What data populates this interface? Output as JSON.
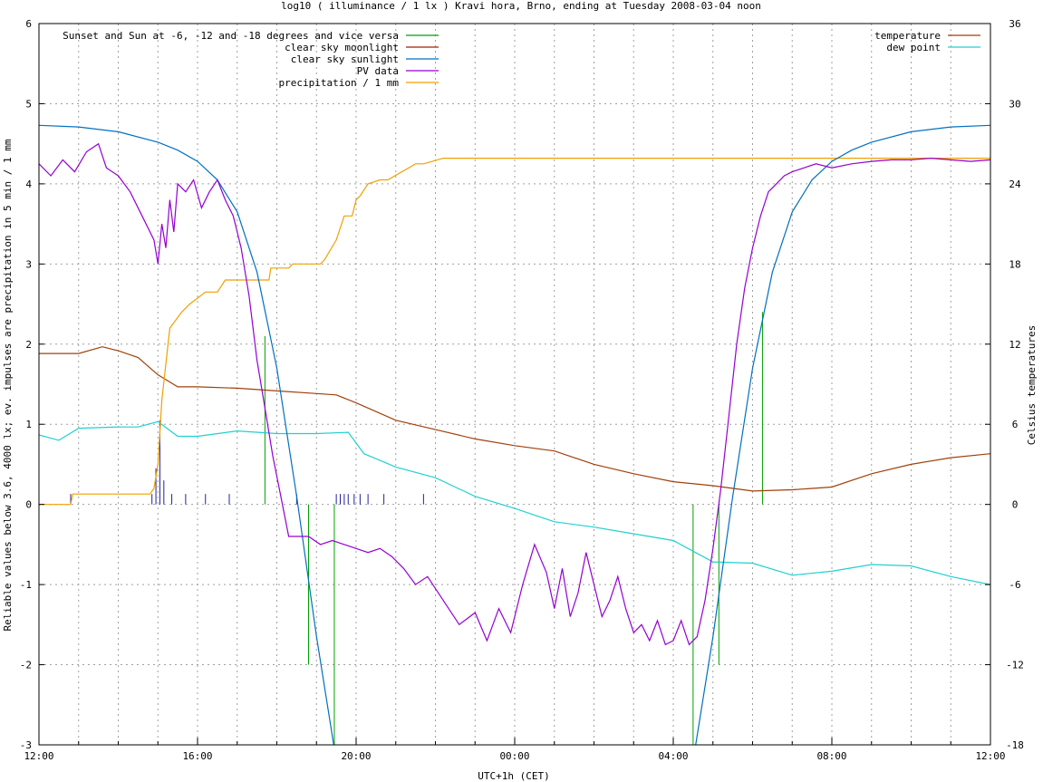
{
  "chart_data": {
    "type": "line",
    "title": "log10 ( illuminance / 1 lx ) Kravi hora, Brno, ending at Tuesday 2008-03-04 noon",
    "xlabel": "UTC+1h (CET)",
    "ylabel": "Reliable values below 3.6, 4000 lx; ev. impulses are precipitation in 5 min / 1 mm",
    "y2label": "Celsius temperatures",
    "x_range_hours": [
      0,
      24
    ],
    "x_tick_labels": [
      "12:00",
      "16:00",
      "20:00",
      "00:00",
      "04:00",
      "08:00",
      "12:00"
    ],
    "x_tick_hours": [
      0,
      4,
      8,
      12,
      16,
      20,
      24
    ],
    "ylim": [
      -3,
      6
    ],
    "y_ticks": [
      -3,
      -2,
      -1,
      0,
      1,
      2,
      3,
      4,
      5,
      6
    ],
    "y2lim": [
      -18,
      36
    ],
    "y2_ticks": [
      -18,
      -12,
      -6,
      0,
      6,
      12,
      18,
      24,
      30,
      36
    ],
    "grid": true,
    "legend_left": [
      {
        "label": "Sunset and Sun at -6, -12 and -18 degrees and vice versa",
        "color": "#00a000"
      },
      {
        "label": "clear sky moonlight",
        "color": "#a02000"
      },
      {
        "label": "clear sky sunlight",
        "color": "#0070c0"
      },
      {
        "label": "PV data",
        "color": "#9400d3"
      },
      {
        "label": "precipitation / 1 mm",
        "color": "#f0a000"
      }
    ],
    "legend_right": [
      {
        "label": "temperature",
        "color": "#a0400a"
      },
      {
        "label": "dew point",
        "color": "#20d0d0"
      }
    ],
    "twilight_markers": [
      {
        "x": 5.7,
        "y_top": 2.1
      },
      {
        "x": 6.8,
        "y_top": -2.0
      },
      {
        "x": 7.45,
        "y_top": -3.0
      },
      {
        "x": 16.5,
        "y_top": -3.0
      },
      {
        "x": 17.15,
        "y_top": -2.0
      },
      {
        "x": 18.25,
        "y_top": 2.4
      }
    ],
    "sunlight": {
      "x": [
        0,
        1,
        2,
        3,
        3.5,
        4,
        4.5,
        5,
        5.5,
        6,
        6.5,
        7,
        7.5,
        16.5,
        17,
        17.5,
        18,
        18.5,
        19,
        19.5,
        20,
        20.5,
        21,
        22,
        23,
        24
      ],
      "y": [
        4.73,
        4.71,
        4.65,
        4.52,
        4.42,
        4.28,
        4.05,
        3.65,
        2.9,
        1.7,
        0.1,
        -1.65,
        -3.2,
        -3.2,
        -1.65,
        0.1,
        1.7,
        2.9,
        3.65,
        4.05,
        4.28,
        4.42,
        4.52,
        4.65,
        4.71,
        4.73
      ]
    },
    "pv_data": {
      "x": [
        0,
        0.3,
        0.6,
        0.9,
        1.2,
        1.5,
        1.7,
        2.0,
        2.3,
        2.6,
        2.9,
        3.0,
        3.1,
        3.2,
        3.3,
        3.4,
        3.5,
        3.7,
        3.9,
        4.1,
        4.3,
        4.5,
        4.7,
        4.9,
        5.1,
        5.3,
        5.5,
        5.7,
        5.9,
        6.1,
        6.3,
        6.5,
        6.8,
        7.1,
        7.4,
        7.7,
        8.0,
        8.3,
        8.6,
        8.9,
        9.2,
        9.5,
        9.8,
        10.2,
        10.6,
        11.0,
        11.3,
        11.6,
        11.9,
        12.2,
        12.5,
        12.8,
        13.0,
        13.2,
        13.4,
        13.6,
        13.8,
        14.0,
        14.2,
        14.4,
        14.6,
        14.8,
        15.0,
        15.2,
        15.4,
        15.6,
        15.8,
        16.0,
        16.2,
        16.4,
        16.6,
        16.8,
        17.0,
        17.2,
        17.4,
        17.6,
        17.8,
        18.0,
        18.2,
        18.4,
        18.6,
        18.8,
        19.0,
        19.3,
        19.6,
        20.0,
        20.5,
        21.0,
        21.5,
        22.0,
        22.5,
        23.0,
        23.5,
        24.0
      ],
      "y": [
        4.25,
        4.1,
        4.3,
        4.15,
        4.4,
        4.5,
        4.2,
        4.1,
        3.9,
        3.6,
        3.3,
        3.0,
        3.5,
        3.2,
        3.8,
        3.4,
        4.0,
        3.9,
        4.05,
        3.7,
        3.9,
        4.05,
        3.8,
        3.6,
        3.2,
        2.6,
        1.8,
        1.2,
        0.6,
        0.1,
        -0.4,
        -0.4,
        -0.4,
        -0.5,
        -0.45,
        -0.5,
        -0.55,
        -0.6,
        -0.55,
        -0.65,
        -0.8,
        -1.0,
        -0.9,
        -1.2,
        -1.5,
        -1.35,
        -1.7,
        -1.3,
        -1.6,
        -1.0,
        -0.5,
        -0.85,
        -1.3,
        -0.8,
        -1.4,
        -1.1,
        -0.6,
        -1.0,
        -1.4,
        -1.2,
        -0.9,
        -1.3,
        -1.6,
        -1.5,
        -1.7,
        -1.45,
        -1.75,
        -1.7,
        -1.45,
        -1.75,
        -1.65,
        -1.2,
        -0.55,
        0.2,
        1.1,
        2.0,
        2.7,
        3.2,
        3.6,
        3.9,
        4.0,
        4.1,
        4.15,
        4.2,
        4.25,
        4.2,
        4.25,
        4.28,
        4.3,
        4.3,
        4.32,
        4.3,
        4.28,
        4.3
      ]
    },
    "precipitation": {
      "x": [
        0,
        0.8,
        0.85,
        2.8,
        2.9,
        3.0,
        3.1,
        3.3,
        3.6,
        3.8,
        4.2,
        4.5,
        4.7,
        5.0,
        5.8,
        5.85,
        6.3,
        6.4,
        7.1,
        7.2,
        7.5,
        7.7,
        7.9,
        8.0,
        8.1,
        8.3,
        8.6,
        8.8,
        9.5,
        9.7,
        10.2,
        10.4,
        24.0
      ],
      "y": [
        0.0,
        0.0,
        0.13,
        0.13,
        0.2,
        0.5,
        1.3,
        2.2,
        2.4,
        2.5,
        2.65,
        2.65,
        2.8,
        2.8,
        2.8,
        2.95,
        2.95,
        3.0,
        3.0,
        3.05,
        3.3,
        3.6,
        3.6,
        3.8,
        3.85,
        4.0,
        4.05,
        4.05,
        4.25,
        4.25,
        4.32,
        4.32,
        4.32
      ]
    },
    "precipitation_impulses": [
      {
        "x": 0.8,
        "y": 0.13
      },
      {
        "x": 2.85,
        "y": 0.13
      },
      {
        "x": 2.95,
        "y": 0.45
      },
      {
        "x": 3.05,
        "y": 1.05
      },
      {
        "x": 3.15,
        "y": 0.3
      },
      {
        "x": 3.35,
        "y": 0.13
      },
      {
        "x": 3.7,
        "y": 0.13
      },
      {
        "x": 4.2,
        "y": 0.13
      },
      {
        "x": 4.8,
        "y": 0.13
      },
      {
        "x": 6.5,
        "y": 0.13
      },
      {
        "x": 7.5,
        "y": 0.13
      },
      {
        "x": 7.6,
        "y": 0.13
      },
      {
        "x": 7.7,
        "y": 0.13
      },
      {
        "x": 7.8,
        "y": 0.13
      },
      {
        "x": 7.95,
        "y": 0.13
      },
      {
        "x": 8.1,
        "y": 0.13
      },
      {
        "x": 8.3,
        "y": 0.13
      },
      {
        "x": 8.7,
        "y": 0.13
      },
      {
        "x": 9.7,
        "y": 0.13
      }
    ],
    "temperature": {
      "x": [
        0,
        1,
        1.6,
        2,
        2.5,
        3.0,
        3.5,
        4.0,
        5.0,
        6.0,
        7.0,
        7.5,
        8.0,
        9.0,
        10.0,
        11.0,
        12.0,
        13.0,
        14.0,
        15.0,
        16.0,
        17.0,
        18.0,
        19.0,
        20.0,
        21.0,
        22.0,
        23.0,
        24.0
      ],
      "y": [
        11.3,
        11.3,
        11.8,
        11.5,
        11.0,
        9.7,
        8.8,
        8.8,
        8.7,
        8.5,
        8.3,
        8.2,
        7.6,
        6.3,
        5.6,
        4.9,
        4.4,
        4.0,
        3.0,
        2.3,
        1.7,
        1.4,
        1.0,
        1.1,
        1.3,
        2.3,
        3.0,
        3.5,
        3.8
      ]
    },
    "dew_point": {
      "x": [
        0,
        0.5,
        1.0,
        2.0,
        2.5,
        3.0,
        3.5,
        4.0,
        5.0,
        6.0,
        7.0,
        7.8,
        8.2,
        9.0,
        10.0,
        11.0,
        12.0,
        13.0,
        14.0,
        15.0,
        16.0,
        16.5,
        17.0,
        18.0,
        19.0,
        20.0,
        21.0,
        22.0,
        23.0,
        24.0
      ],
      "y": [
        5.2,
        4.8,
        5.7,
        5.8,
        5.8,
        6.2,
        5.1,
        5.1,
        5.5,
        5.3,
        5.3,
        5.4,
        3.8,
        2.8,
        2.0,
        0.6,
        -0.3,
        -1.3,
        -1.7,
        -2.2,
        -2.7,
        -3.5,
        -4.3,
        -4.4,
        -5.3,
        -5.0,
        -4.5,
        -4.6,
        -5.4,
        -6.0
      ]
    }
  }
}
